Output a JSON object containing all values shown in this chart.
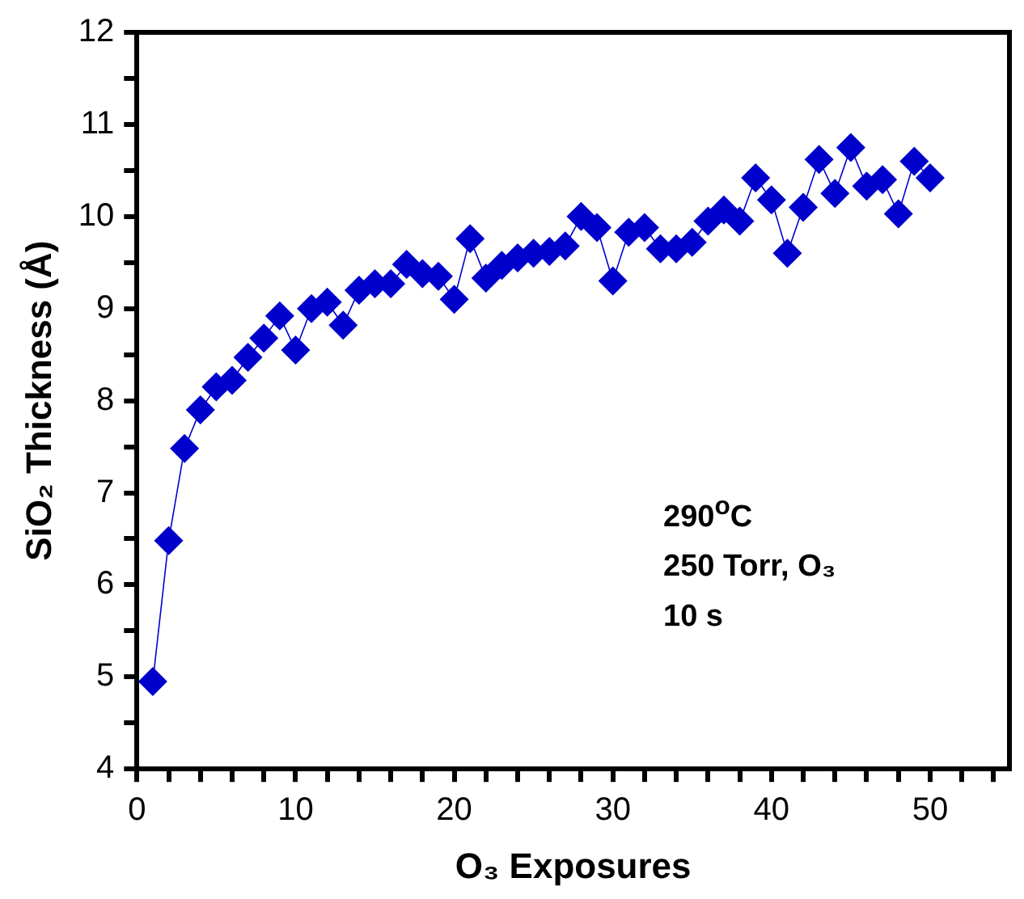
{
  "chart_data": {
    "type": "line",
    "xlabel": "O₃ Exposures",
    "ylabel": "SiO₂ Thickness (Å)",
    "x": [
      1,
      2,
      3,
      4,
      5,
      6,
      7,
      8,
      9,
      10,
      11,
      12,
      13,
      14,
      15,
      16,
      17,
      18,
      19,
      20,
      21,
      22,
      23,
      24,
      25,
      26,
      27,
      28,
      29,
      30,
      31,
      32,
      33,
      34,
      35,
      36,
      37,
      38,
      39,
      40,
      41,
      42,
      43,
      44,
      45,
      46,
      47,
      48,
      49,
      50
    ],
    "series": [
      {
        "color": "#0000cd",
        "values": [
          4.95,
          6.48,
          7.48,
          7.9,
          8.15,
          8.22,
          8.47,
          8.68,
          8.92,
          8.55,
          9.0,
          9.07,
          8.82,
          9.2,
          9.27,
          9.27,
          9.48,
          9.38,
          9.35,
          9.1,
          9.76,
          9.33,
          9.47,
          9.55,
          9.6,
          9.62,
          9.68,
          10.0,
          9.88,
          9.3,
          9.83,
          9.88,
          9.65,
          9.65,
          9.72,
          9.95,
          10.07,
          9.95,
          10.42,
          10.18,
          9.6,
          10.1,
          10.62,
          10.25,
          10.75,
          10.33,
          10.4,
          10.03,
          10.6,
          10.42
        ]
      }
    ],
    "xlim": [
      0,
      55
    ],
    "xticks": [
      0,
      {
        "value": 2,
        "label": null
      },
      {
        "value": 4,
        "label": null
      },
      {
        "value": 6,
        "label": null
      },
      {
        "value": 8,
        "label": null
      },
      10,
      {
        "value": 12,
        "label": null
      },
      {
        "value": 14,
        "label": null
      },
      {
        "value": 16,
        "label": null
      },
      {
        "value": 18,
        "label": null
      },
      20,
      {
        "value": 22,
        "label": null
      },
      {
        "value": 24,
        "label": null
      },
      {
        "value": 26,
        "label": null
      },
      {
        "value": 28,
        "label": null
      },
      30,
      {
        "value": 32,
        "label": null
      },
      {
        "value": 34,
        "label": null
      },
      {
        "value": 36,
        "label": null
      },
      {
        "value": 38,
        "label": null
      },
      40,
      {
        "value": 42,
        "label": null
      },
      {
        "value": 44,
        "label": null
      },
      {
        "value": 46,
        "label": null
      },
      {
        "value": 48,
        "label": null
      },
      50,
      {
        "value": 52,
        "label": null
      },
      {
        "value": 54,
        "label": null
      }
    ],
    "ylim": [
      4,
      12
    ],
    "yticks": [
      4,
      {
        "value": 4.5,
        "label": null
      },
      5,
      {
        "value": 5.5,
        "label": null
      },
      6,
      {
        "value": 6.5,
        "label": null
      },
      7,
      {
        "value": 7.5,
        "label": null
      },
      8,
      {
        "value": 8.5,
        "label": null
      },
      9,
      {
        "value": 9.5,
        "label": null
      },
      10,
      {
        "value": 10.5,
        "label": null
      },
      11,
      {
        "value": 11.5,
        "label": null
      },
      12
    ],
    "annotations": [
      "290$^{o}$C",
      "250 Torr, O₃",
      "10 s"
    ],
    "grid": false,
    "legend": false,
    "marker": "diamond",
    "line_style": "solid"
  }
}
